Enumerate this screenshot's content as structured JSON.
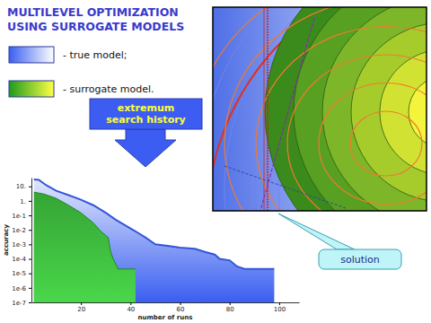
{
  "chart_data": {
    "type": "area",
    "title": [
      "MULTILEVEL OPTIMIZATION",
      "USING SURROGATE MODELS"
    ],
    "xlabel": "number of runs",
    "ylabel": "accuracy",
    "annotations": [
      "extremum search history",
      "solution"
    ],
    "log": "y",
    "xlim": [
      0,
      108
    ],
    "xticks": [
      20,
      40,
      60,
      80,
      100
    ],
    "ylim": [
      1e-07,
      40
    ],
    "yticks": [
      {
        "value": 10,
        "label": "10."
      },
      {
        "value": 1,
        "label": "1."
      },
      {
        "value": 0.1,
        "label": "1e-1"
      },
      {
        "value": 0.01,
        "label": "1e-2"
      },
      {
        "value": 0.001,
        "label": "1e-3"
      },
      {
        "value": 0.0001,
        "label": "1e-4"
      },
      {
        "value": 1e-05,
        "label": "1e-5"
      },
      {
        "value": 1e-06,
        "label": "1e-6"
      },
      {
        "value": 1e-07,
        "label": "1e-7"
      }
    ],
    "series": [
      {
        "name": "- true model;",
        "color": "#3a5ff0",
        "x": [
          1,
          3,
          6,
          10,
          15,
          20,
          25,
          30,
          34,
          38,
          42,
          46,
          50,
          55,
          60,
          66,
          70,
          74,
          76,
          80,
          83,
          86,
          98
        ],
        "values": [
          30,
          28,
          12,
          5,
          2.5,
          1.2,
          0.5,
          0.15,
          0.05,
          0.02,
          0.008,
          0.003,
          0.001,
          0.0008,
          0.0006,
          0.0005,
          0.0003,
          0.0002,
          0.0001,
          8e-05,
          3e-05,
          2e-05,
          2e-05
        ]
      },
      {
        "name": "- surrogate model.",
        "color": "#1f9a1f",
        "x": [
          1,
          5,
          10,
          15,
          20,
          25,
          28,
          31,
          32,
          33,
          35,
          42
        ],
        "values": [
          4,
          3,
          1.5,
          0.5,
          0.15,
          0.03,
          0.008,
          0.003,
          0.0003,
          0.0001,
          2e-05,
          2e-05
        ]
      }
    ]
  }
}
